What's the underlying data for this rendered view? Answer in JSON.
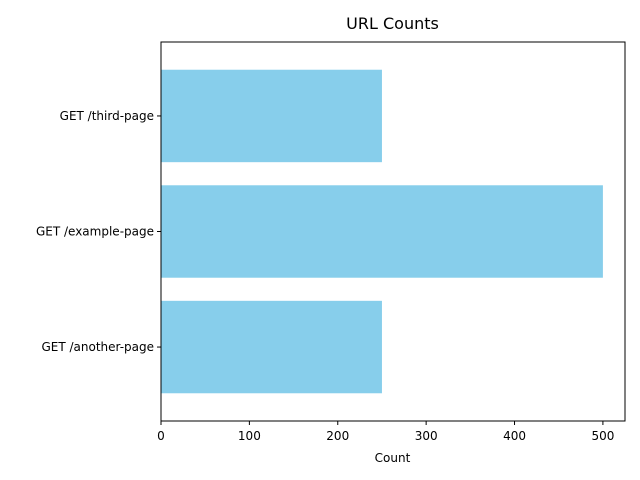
{
  "chart_data": {
    "type": "bar",
    "orientation": "horizontal",
    "title": "URL Counts",
    "xlabel": "Count",
    "ylabel": "",
    "categories": [
      "GET /another-page",
      "GET /example-page",
      "GET /third-page"
    ],
    "values": [
      250,
      500,
      250
    ],
    "xlim": [
      0,
      525
    ],
    "xticks": [
      0,
      100,
      200,
      300,
      400,
      500
    ],
    "bar_color": "#87CEEB",
    "grid": false,
    "legend": "none"
  }
}
